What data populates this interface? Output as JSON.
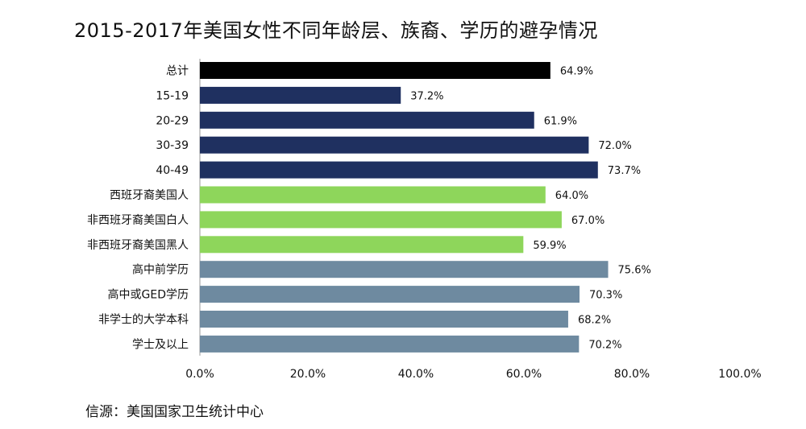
{
  "title": "2015-2017年美国女性不同年龄层、族裔、学历的避孕情况",
  "source": "信源：美国国家卫生统计中心",
  "chart_data": {
    "type": "bar",
    "orientation": "horizontal",
    "categories": [
      "总计",
      "15-19",
      "20-29",
      "30-39",
      "40-49",
      "西班牙裔美国人",
      "非西班牙裔美国白人",
      "非西班牙裔美国黑人",
      "高中前学历",
      "高中或GED学历",
      "非学士的大学本科",
      "学士及以上"
    ],
    "values": [
      64.9,
      37.2,
      61.9,
      72.0,
      73.7,
      64.0,
      67.0,
      59.9,
      75.6,
      70.3,
      68.2,
      70.2
    ],
    "value_labels": [
      "64.9%",
      "37.2%",
      "61.9%",
      "72.0%",
      "73.7%",
      "64.0%",
      "67.0%",
      "59.9%",
      "75.6%",
      "70.3%",
      "68.2%",
      "70.2%"
    ],
    "bar_colors": [
      "#000000",
      "#1f3060",
      "#1f3060",
      "#1f3060",
      "#1f3060",
      "#8ed65b",
      "#8ed65b",
      "#8ed65b",
      "#6e8aa0",
      "#6e8aa0",
      "#6e8aa0",
      "#6e8aa0"
    ],
    "xlim": [
      0,
      100
    ],
    "xticks": [
      0,
      20,
      40,
      60,
      80,
      100
    ],
    "xtick_labels": [
      "0.0%",
      "20.0%",
      "40.0%",
      "60.0%",
      "80.0%",
      "100.0%"
    ],
    "grid": false,
    "legend": "none"
  }
}
